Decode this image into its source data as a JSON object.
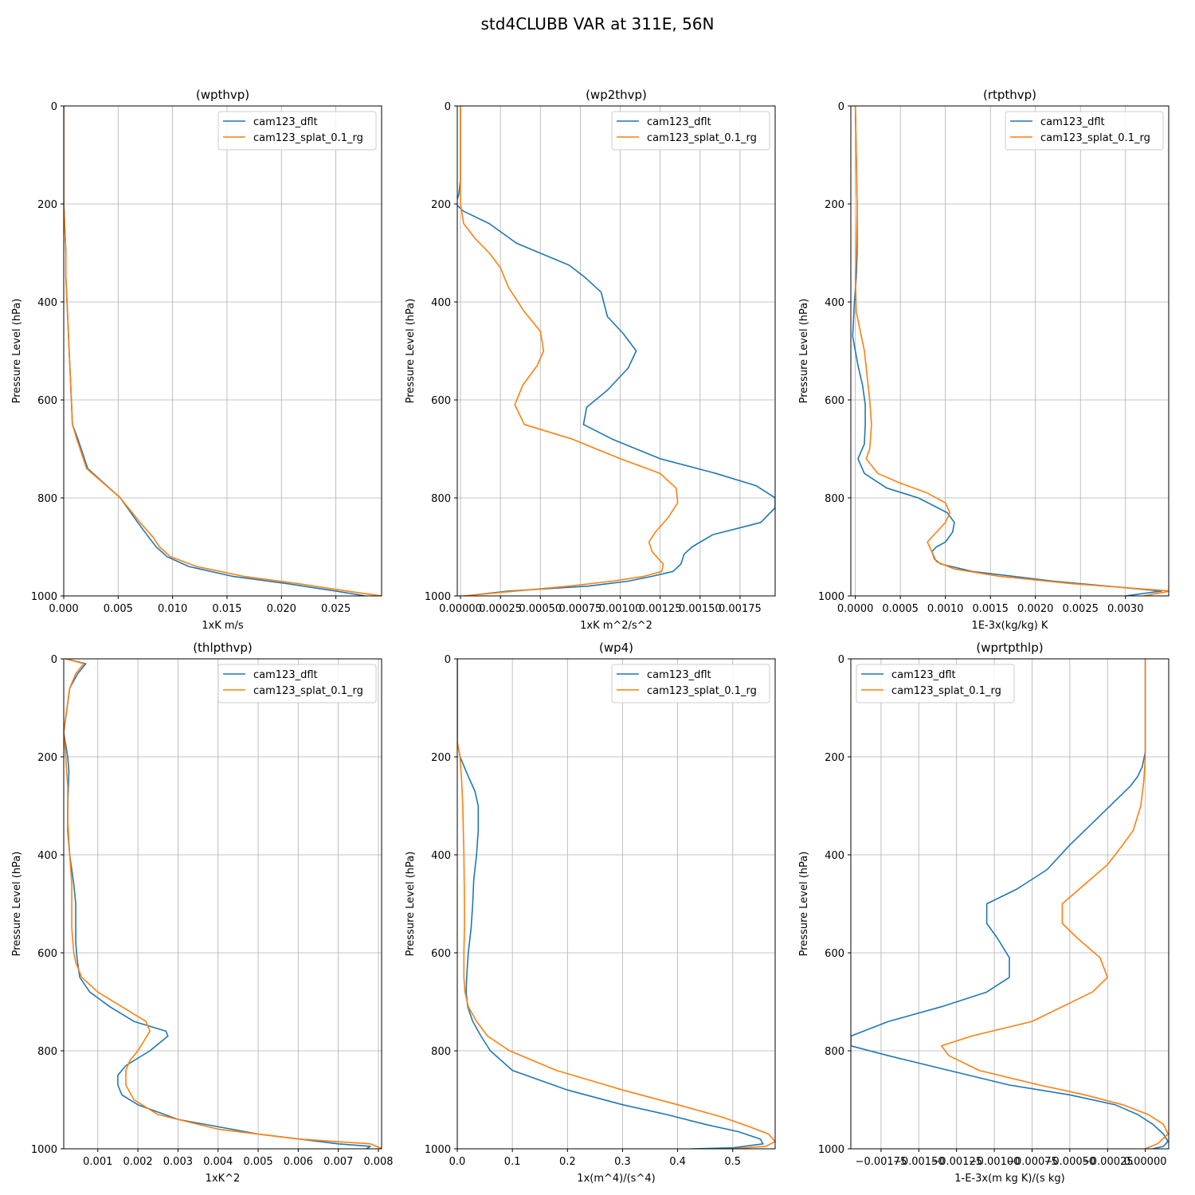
{
  "figure": {
    "title": "std4CLUBB VAR at 311E, 56N"
  },
  "series_names": [
    "cam123_dflt",
    "cam123_splat_0.1_rg"
  ],
  "colors": {
    "cam123_dflt": "#1f77b4",
    "cam123_splat_0.1_rg": "#ff7f0e"
  },
  "chart_data": [
    {
      "type": "line",
      "title": "(wpthvp)",
      "xlabel": "1xK m/s",
      "ylabel": "Pressure Level (hPa)",
      "xlim": [
        0,
        0.0292
      ],
      "ylim": [
        1000,
        0
      ],
      "xticks": [
        0.0,
        0.005,
        0.01,
        0.015,
        0.02,
        0.025
      ],
      "xtick_labels": [
        "0.000",
        "0.005",
        "0.010",
        "0.015",
        "0.020",
        "0.025"
      ],
      "yticks": [
        0,
        200,
        400,
        600,
        800,
        1000
      ],
      "ytick_labels": [
        "0",
        "200",
        "400",
        "600",
        "800",
        "1000"
      ],
      "legend": "upper right",
      "series": [
        {
          "name": "cam123_dflt",
          "x": [
            0,
            0,
            0,
            0.0001,
            0.0002,
            0.0002,
            0.0003,
            0.0004,
            0.0005,
            0.0006,
            0.0007,
            0.0008,
            0.0013,
            0.0022,
            0.0052,
            0.0068,
            0.0078,
            0.0085,
            0.0095,
            0.0115,
            0.0155,
            0.0205,
            0.025,
            0.0277
          ],
          "y": [
            0,
            100,
            200,
            250,
            300,
            350,
            400,
            450,
            500,
            550,
            600,
            650,
            680,
            740,
            800,
            850,
            880,
            900,
            920,
            940,
            960,
            975,
            990,
            1000
          ]
        },
        {
          "name": "cam123_splat_0.1_rg",
          "x": [
            0,
            0,
            0,
            0.0001,
            0.0002,
            0.0002,
            0.0003,
            0.0004,
            0.0005,
            0.0006,
            0.0007,
            0.0008,
            0.0012,
            0.0021,
            0.0052,
            0.007,
            0.0082,
            0.0088,
            0.0098,
            0.0122,
            0.0165,
            0.0215,
            0.026,
            0.0292
          ],
          "y": [
            0,
            100,
            200,
            250,
            300,
            350,
            400,
            450,
            500,
            550,
            600,
            650,
            680,
            740,
            800,
            850,
            880,
            900,
            920,
            940,
            960,
            975,
            990,
            1000
          ]
        }
      ]
    },
    {
      "type": "line",
      "title": "(wp2thvp)",
      "xlabel": "1xK m^2/s^2",
      "ylabel": "Pressure Level (hPa)",
      "xlim": [
        -2e-05,
        0.00197
      ],
      "ylim": [
        1000,
        0
      ],
      "xticks": [
        0,
        0.00025,
        0.0005,
        0.00075,
        0.001,
        0.00125,
        0.0015,
        0.00175
      ],
      "xtick_labels": [
        "0.00000",
        "0.00025",
        "0.00050",
        "0.00075",
        "0.00100",
        "0.00125",
        "0.00150",
        "0.00175"
      ],
      "yticks": [
        0,
        200,
        400,
        600,
        800,
        1000
      ],
      "ytick_labels": [
        "0",
        "200",
        "400",
        "600",
        "800",
        "1000"
      ],
      "legend": "upper right",
      "series": [
        {
          "name": "cam123_dflt",
          "x": [
            0,
            0,
            -1e-05,
            -3e-05,
            2e-05,
            0.00018,
            0.00035,
            0.00068,
            0.00078,
            0.00088,
            0.00092,
            0.00102,
            0.0011,
            0.00105,
            0.00092,
            0.00079,
            0.00077,
            0.00095,
            0.00125,
            0.0016,
            0.00185,
            0.00197,
            0.00197,
            0.00188,
            0.00158,
            0.00145,
            0.0014,
            0.00138,
            0.00133,
            0.0012,
            0.00105,
            0.0008,
            0.0003,
            3e-05
          ],
          "y": [
            0,
            150,
            180,
            200,
            215,
            240,
            280,
            325,
            350,
            380,
            430,
            465,
            500,
            535,
            580,
            615,
            650,
            680,
            720,
            750,
            775,
            800,
            820,
            850,
            875,
            900,
            915,
            935,
            950,
            960,
            970,
            980,
            990,
            1000
          ]
        },
        {
          "name": "cam123_splat_0.1_rg",
          "x": [
            0,
            0,
            0,
            2e-05,
            9e-05,
            0.00018,
            0.00025,
            0.0003,
            0.0004,
            0.0005,
            0.00052,
            0.00048,
            0.00039,
            0.00034,
            0.0004,
            0.0007,
            0.001,
            0.00125,
            0.00135,
            0.00136,
            0.0013,
            0.00122,
            0.00118,
            0.0012,
            0.00127,
            0.00126,
            0.00115,
            0.00095,
            0.00068,
            2e-05
          ],
          "y": [
            0,
            100,
            200,
            240,
            270,
            300,
            330,
            370,
            420,
            460,
            500,
            530,
            570,
            610,
            650,
            680,
            720,
            750,
            780,
            810,
            840,
            870,
            890,
            910,
            935,
            950,
            960,
            970,
            980,
            1000
          ]
        }
      ]
    },
    {
      "type": "line",
      "title": "(rtpthvp)",
      "xlabel": "1E-3x(kg/kg) K",
      "ylabel": "Pressure Level (hPa)",
      "xlim": [
        -5e-05,
        0.00348
      ],
      "ylim": [
        1000,
        0
      ],
      "xticks": [
        0,
        0.0005,
        0.001,
        0.0015,
        0.002,
        0.0025,
        0.003
      ],
      "xtick_labels": [
        "0.0000",
        "0.0005",
        "0.0010",
        "0.0015",
        "0.0020",
        "0.0025",
        "0.0030"
      ],
      "yticks": [
        0,
        200,
        400,
        600,
        800,
        1000
      ],
      "ytick_labels": [
        "0",
        "200",
        "400",
        "600",
        "800",
        "1000"
      ],
      "legend": "upper right",
      "series": [
        {
          "name": "cam123_dflt",
          "x": [
            0,
            1e-05,
            2e-05,
            2e-05,
            1e-05,
            -1e-05,
            -3e-05,
            3e-05,
            8e-05,
            0.00011,
            0.00011,
            0.0001,
            3e-05,
            0.0001,
            0.00035,
            0.0007,
            0.00102,
            0.0011,
            0.00108,
            0.001,
            0.0009,
            0.00085,
            0.00088,
            0.00095,
            0.0013,
            0.0022,
            0.0034,
            0.003
          ],
          "y": [
            0,
            100,
            200,
            300,
            350,
            400,
            470,
            530,
            570,
            610,
            650,
            690,
            720,
            750,
            780,
            800,
            830,
            850,
            870,
            890,
            900,
            910,
            925,
            935,
            950,
            970,
            990,
            1000
          ]
        },
        {
          "name": "cam123_splat_0.1_rg",
          "x": [
            0,
            1e-05,
            2e-05,
            1e-05,
            0,
            1e-05,
            0.0001,
            0.00016,
            0.00018,
            0.00016,
            0.00012,
            0.00025,
            0.0005,
            0.0008,
            0.001,
            0.00105,
            0.001,
            0.0009,
            0.0008,
            0.00085,
            0.0009,
            0.0011,
            0.0016,
            0.0024,
            0.0035,
            0.0032
          ],
          "y": [
            0,
            100,
            200,
            300,
            350,
            420,
            500,
            600,
            650,
            700,
            720,
            750,
            770,
            790,
            810,
            830,
            850,
            870,
            890,
            910,
            930,
            945,
            960,
            975,
            990,
            1000
          ]
        }
      ]
    },
    {
      "type": "line",
      "title": "(thlpthvp)",
      "xlabel": "1xK^2",
      "ylabel": "Pressure Level (hPa)",
      "xlim": [
        0.00015,
        0.00808
      ],
      "ylim": [
        1000,
        0
      ],
      "xticks": [
        0.001,
        0.002,
        0.003,
        0.004,
        0.005,
        0.006,
        0.007,
        0.008
      ],
      "xtick_labels": [
        "0.001",
        "0.002",
        "0.003",
        "0.004",
        "0.005",
        "0.006",
        "0.007",
        "0.008"
      ],
      "yticks": [
        0,
        200,
        400,
        600,
        800,
        1000
      ],
      "ytick_labels": [
        "0",
        "200",
        "400",
        "600",
        "800",
        "1000"
      ],
      "legend": "upper right",
      "series": [
        {
          "name": "cam123_dflt",
          "x": [
            0.0002,
            0.0007,
            0.0005,
            0.0003,
            0.00015,
            0.00025,
            0.00028,
            0.00025,
            0.00025,
            0.0003,
            0.0004,
            0.00045,
            0.00045,
            0.00045,
            0.00048,
            0.00055,
            0.0008,
            0.0013,
            0.0019,
            0.0027,
            0.00275,
            0.0023,
            0.0017,
            0.0015,
            0.0015,
            0.0016,
            0.002,
            0.003,
            0.005,
            0.007,
            0.0078,
            0.0077
          ],
          "y": [
            0,
            10,
            30,
            60,
            150,
            200,
            230,
            300,
            350,
            400,
            460,
            500,
            550,
            580,
            610,
            650,
            680,
            710,
            740,
            760,
            770,
            800,
            830,
            850,
            870,
            890,
            910,
            940,
            970,
            990,
            995,
            1000
          ]
        },
        {
          "name": "cam123_splat_0.1_rg",
          "x": [
            0.0002,
            0.00065,
            0.00045,
            0.0003,
            0.00015,
            0.0002,
            0.00025,
            0.00025,
            0.0003,
            0.00035,
            0.00035,
            0.00035,
            0.0004,
            0.00045,
            0.0006,
            0.001,
            0.0016,
            0.0022,
            0.0023,
            0.002,
            0.0018,
            0.0017,
            0.0017,
            0.0019,
            0.0025,
            0.004,
            0.006,
            0.0078,
            0.0081
          ],
          "y": [
            0,
            10,
            30,
            60,
            150,
            200,
            260,
            330,
            400,
            460,
            500,
            550,
            600,
            620,
            650,
            680,
            710,
            740,
            760,
            800,
            820,
            840,
            870,
            900,
            930,
            960,
            980,
            990,
            1000
          ]
        }
      ]
    },
    {
      "type": "line",
      "title": "(wp4)",
      "xlabel": "1x(m^4)/(s^4)",
      "ylabel": "Pressure Level (hPa)",
      "xlim": [
        0,
        0.577
      ],
      "ylim": [
        1000,
        0
      ],
      "xticks": [
        0,
        0.1,
        0.2,
        0.3,
        0.4,
        0.5
      ],
      "xtick_labels": [
        "0.0",
        "0.1",
        "0.2",
        "0.3",
        "0.4",
        "0.5"
      ],
      "yticks": [
        0,
        200,
        400,
        600,
        800,
        1000
      ],
      "ytick_labels": [
        "0",
        "200",
        "400",
        "600",
        "800",
        "1000"
      ],
      "legend": "upper right",
      "series": [
        {
          "name": "cam123_dflt",
          "x": [
            0,
            0,
            0.005,
            0.02,
            0.032,
            0.038,
            0.038,
            0.035,
            0.03,
            0.028,
            0.025,
            0.02,
            0.017,
            0.016,
            0.019,
            0.028,
            0.043,
            0.06,
            0.1,
            0.2,
            0.3,
            0.38,
            0.45,
            0.51,
            0.55,
            0.555,
            0.5,
            0.425
          ],
          "y": [
            0,
            170,
            200,
            240,
            270,
            300,
            350,
            400,
            450,
            500,
            550,
            600,
            650,
            680,
            710,
            740,
            770,
            800,
            840,
            880,
            910,
            930,
            950,
            965,
            980,
            990,
            998,
            1000
          ]
        },
        {
          "name": "cam123_splat_0.1_rg",
          "x": [
            0,
            0,
            0.005,
            0.008,
            0.01,
            0.012,
            0.013,
            0.013,
            0.012,
            0.012,
            0.014,
            0.02,
            0.035,
            0.055,
            0.095,
            0.18,
            0.3,
            0.4,
            0.48,
            0.53,
            0.565,
            0.577,
            0.56,
            0.5
          ],
          "y": [
            0,
            170,
            200,
            250,
            300,
            400,
            500,
            550,
            600,
            650,
            680,
            710,
            740,
            770,
            800,
            840,
            880,
            910,
            935,
            955,
            970,
            985,
            995,
            1000
          ]
        }
      ]
    },
    {
      "type": "line",
      "title": "(wprtpthlp)",
      "xlabel": "1-E-3x(m kg K)/(s kg)",
      "ylabel": "Pressure Level (hPa)",
      "xlim": [
        -0.00195,
        0.000155
      ],
      "ylim": [
        1000,
        0
      ],
      "xticks": [
        -0.00175,
        -0.0015,
        -0.00125,
        -0.001,
        -0.00075,
        -0.0005,
        -0.00025,
        0
      ],
      "xtick_labels": [
        "−0.00175",
        "−0.00150",
        "−0.00125",
        "−0.00100",
        "−0.00075",
        "−0.00050",
        "−0.00025",
        "0.00000"
      ],
      "yticks": [
        0,
        200,
        400,
        600,
        800,
        1000
      ],
      "ytick_labels": [
        "0",
        "200",
        "400",
        "600",
        "800",
        "1000"
      ],
      "legend": "upper left",
      "series": [
        {
          "name": "cam123_dflt",
          "x": [
            0,
            0,
            -2e-05,
            -5e-05,
            -0.0001,
            -0.0002,
            -0.0003,
            -0.0004,
            -0.0005,
            -0.00065,
            -0.00085,
            -0.00105,
            -0.00105,
            -0.00098,
            -0.0009,
            -0.0009,
            -0.00105,
            -0.00135,
            -0.0017,
            -0.00195,
            -0.00195,
            -0.0017,
            -0.0013,
            -0.0009,
            -0.0005,
            -0.0002,
            -5e-05,
            5e-05,
            0.00012,
            0.00015,
            0.00012,
            5e-05
          ],
          "y": [
            0,
            190,
            220,
            240,
            260,
            290,
            320,
            350,
            380,
            430,
            470,
            500,
            540,
            570,
            610,
            650,
            680,
            710,
            740,
            770,
            790,
            810,
            840,
            870,
            890,
            910,
            930,
            950,
            970,
            985,
            995,
            1000
          ]
        },
        {
          "name": "cam123_splat_0.1_rg",
          "x": [
            0,
            0,
            -1e-05,
            -3e-05,
            -8e-05,
            -0.00015,
            -0.00025,
            -0.0004,
            -0.00055,
            -0.00055,
            -0.00045,
            -0.0003,
            -0.00025,
            -0.00035,
            -0.00075,
            -0.00115,
            -0.00135,
            -0.0013,
            -0.0011,
            -0.0007,
            -0.0004,
            -0.00015,
            2e-05,
            0.00012,
            0.00015,
            8e-05,
            0
          ],
          "y": [
            0,
            200,
            250,
            300,
            350,
            380,
            420,
            460,
            500,
            540,
            570,
            610,
            650,
            680,
            740,
            770,
            790,
            810,
            840,
            870,
            890,
            910,
            930,
            950,
            970,
            990,
            1000
          ]
        }
      ]
    }
  ]
}
